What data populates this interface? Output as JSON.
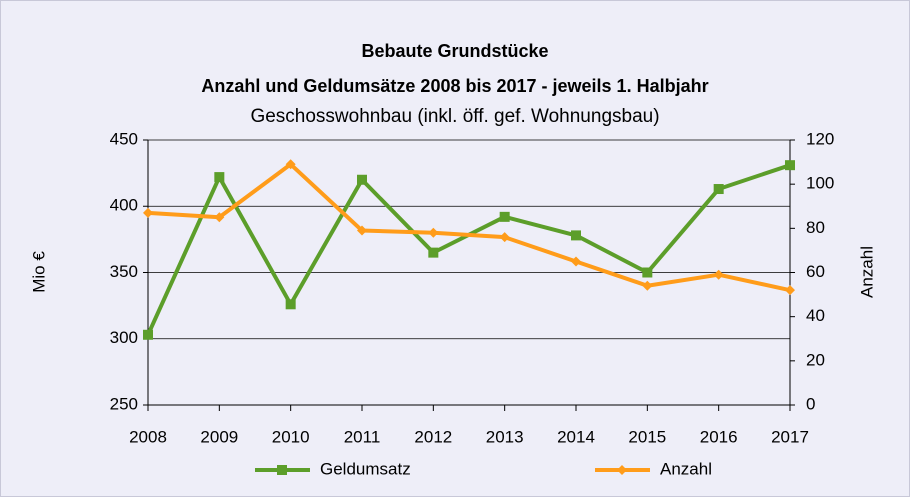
{
  "chart_data": {
    "type": "line",
    "title": "Bebaute Grundstücke",
    "subtitle": "Anzahl und Geldumsätze 2008 bis 2017 - jeweils 1. Halbjahr",
    "subtitle2": "Geschosswohnbau (inkl. öff. gef. Wohnungsbau)",
    "y_label": "Mio €",
    "y2_label": "Anzahl",
    "categories": [
      "2008",
      "2009",
      "2010",
      "2011",
      "2012",
      "2013",
      "2014",
      "2015",
      "2016",
      "2017"
    ],
    "ylim": [
      250,
      450
    ],
    "yticks": [
      250,
      300,
      350,
      400,
      450
    ],
    "y2lim": [
      0,
      120
    ],
    "y2ticks": [
      0,
      20,
      40,
      60,
      80,
      100,
      120
    ],
    "grid": true,
    "legend": "bottom",
    "series": [
      {
        "name": "Geldumsatz",
        "color": "#5c9e2a",
        "marker": "square",
        "values": [
          303,
          422,
          326,
          420,
          365,
          392,
          378,
          350,
          413,
          431
        ]
      },
      {
        "name": "Anzahl",
        "color": "#ff9c1a",
        "marker": "diamond",
        "axis": "y2",
        "values": [
          87,
          85,
          109,
          79,
          78,
          76,
          65,
          54,
          59,
          52
        ]
      }
    ]
  }
}
